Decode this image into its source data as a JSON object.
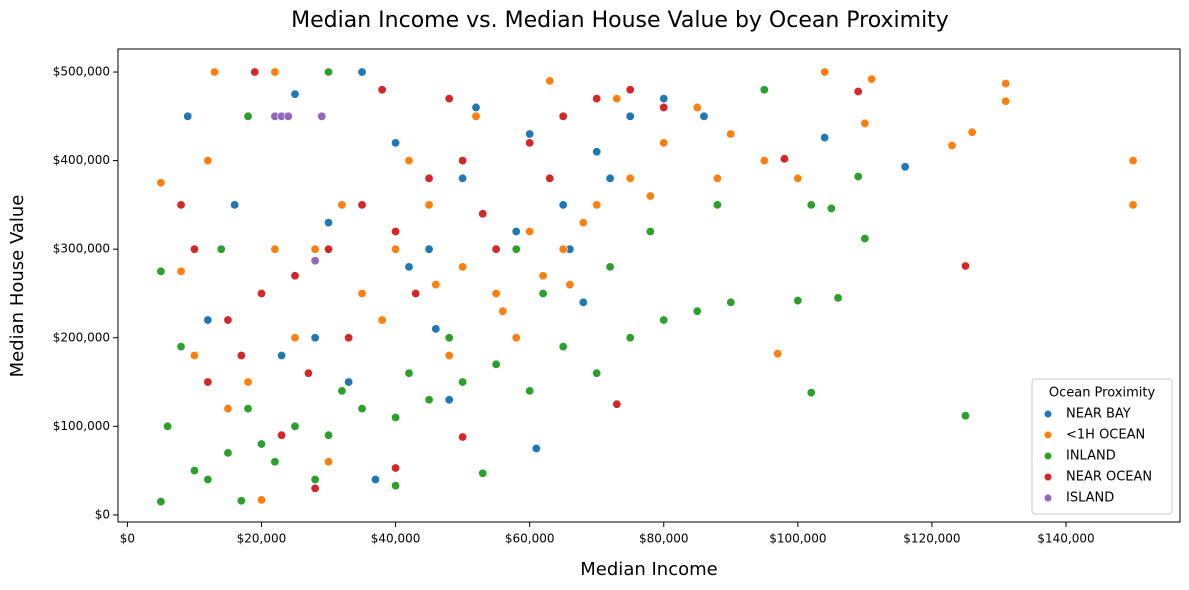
{
  "chart_data": {
    "type": "scatter",
    "title": "Median Income vs. Median House Value by Ocean Proximity",
    "x_label": "Median Income",
    "y_label": "Median House Value",
    "legend_title": "Ocean Proximity",
    "legend_position": "lower right",
    "xlim": [
      -1400,
      157000
    ],
    "ylim": [
      -8000,
      526000
    ],
    "xticks": [
      {
        "value": 0,
        "label": "$0"
      },
      {
        "value": 20000,
        "label": "$20,000"
      },
      {
        "value": 40000,
        "label": "$40,000"
      },
      {
        "value": 60000,
        "label": "$60,000"
      },
      {
        "value": 80000,
        "label": "$80,000"
      },
      {
        "value": 100000,
        "label": "$100,000"
      },
      {
        "value": 120000,
        "label": "$120,000"
      },
      {
        "value": 140000,
        "label": "$140,000"
      }
    ],
    "yticks": [
      {
        "value": 0,
        "label": "$0"
      },
      {
        "value": 100000,
        "label": "$100,000"
      },
      {
        "value": 200000,
        "label": "$200,000"
      },
      {
        "value": 300000,
        "label": "$300,000"
      },
      {
        "value": 400000,
        "label": "$400,000"
      },
      {
        "value": 500000,
        "label": "$500,000"
      }
    ],
    "series": [
      {
        "name": "NEAR BAY",
        "color": "#1f77b4",
        "x": [
          9000,
          116000,
          61000,
          37000,
          16000,
          25000,
          40000,
          50000,
          60000,
          70000,
          80000,
          104000,
          45000,
          55000,
          30000,
          35000,
          65000,
          75000,
          20000,
          28000,
          42000,
          52000,
          66000,
          86000,
          23000,
          33000,
          46000,
          58000,
          72000,
          12000,
          68000,
          48000
        ],
        "values": [
          450000,
          393000,
          75000,
          40000,
          350000,
          475000,
          420000,
          380000,
          430000,
          410000,
          470000,
          426000,
          300000,
          250000,
          330000,
          500000,
          350000,
          450000,
          250000,
          200000,
          280000,
          460000,
          300000,
          450000,
          180000,
          150000,
          210000,
          320000,
          380000,
          220000,
          240000,
          130000
        ]
      },
      {
        "name": "<1H OCEAN",
        "color": "#ff7f0e",
        "x": [
          150000,
          150000,
          131000,
          131000,
          126000,
          123000,
          111000,
          97000,
          110000,
          104000,
          100000,
          13000,
          5000,
          12000,
          8000,
          22000,
          20000,
          30000,
          40000,
          45000,
          50000,
          55000,
          60000,
          65000,
          70000,
          75000,
          80000,
          85000,
          90000,
          95000,
          35000,
          25000,
          18000,
          15000,
          28000,
          38000,
          48000,
          58000,
          62000,
          68000,
          78000,
          88000,
          42000,
          52000,
          63000,
          73000,
          32000,
          22000,
          10000,
          46000,
          56000,
          66000
        ],
        "values": [
          400000,
          350000,
          487000,
          467000,
          432000,
          417000,
          492000,
          182000,
          442000,
          500000,
          380000,
          500000,
          375000,
          400000,
          275000,
          500000,
          17000,
          60000,
          300000,
          350000,
          280000,
          250000,
          320000,
          300000,
          350000,
          380000,
          420000,
          460000,
          430000,
          400000,
          250000,
          200000,
          150000,
          120000,
          300000,
          220000,
          180000,
          200000,
          270000,
          330000,
          360000,
          380000,
          400000,
          450000,
          490000,
          470000,
          350000,
          300000,
          180000,
          260000,
          230000,
          260000
        ]
      },
      {
        "name": "INLAND",
        "color": "#2ca02c",
        "x": [
          125000,
          109000,
          110000,
          105000,
          102000,
          100000,
          106000,
          5000,
          5000,
          17000,
          10000,
          15000,
          20000,
          25000,
          30000,
          35000,
          40000,
          45000,
          50000,
          55000,
          60000,
          65000,
          70000,
          75000,
          80000,
          85000,
          90000,
          53000,
          40000,
          28000,
          22000,
          12000,
          18000,
          32000,
          42000,
          62000,
          72000,
          95000,
          102000,
          30000,
          18000,
          14000,
          8000,
          6000,
          48000,
          58000,
          78000,
          88000
        ],
        "values": [
          112000,
          382000,
          312000,
          346000,
          138000,
          242000,
          245000,
          15000,
          275000,
          16000,
          50000,
          70000,
          80000,
          100000,
          90000,
          120000,
          110000,
          130000,
          150000,
          170000,
          140000,
          190000,
          160000,
          200000,
          220000,
          230000,
          240000,
          47000,
          33000,
          40000,
          60000,
          40000,
          120000,
          140000,
          160000,
          250000,
          280000,
          480000,
          350000,
          500000,
          450000,
          300000,
          190000,
          100000,
          200000,
          300000,
          320000,
          350000
        ]
      },
      {
        "name": "NEAR OCEAN",
        "color": "#d62728",
        "x": [
          125000,
          73000,
          40000,
          28000,
          19000,
          10000,
          15000,
          20000,
          25000,
          30000,
          35000,
          40000,
          45000,
          50000,
          55000,
          60000,
          65000,
          70000,
          75000,
          80000,
          98000,
          109000,
          50000,
          23000,
          33000,
          43000,
          53000,
          63000,
          38000,
          48000,
          8000,
          12000,
          17000,
          27000
        ],
        "values": [
          281000,
          125000,
          53000,
          30000,
          500000,
          300000,
          220000,
          250000,
          270000,
          300000,
          350000,
          320000,
          380000,
          400000,
          300000,
          420000,
          450000,
          470000,
          480000,
          460000,
          402000,
          478000,
          88000,
          90000,
          200000,
          250000,
          340000,
          380000,
          480000,
          470000,
          350000,
          150000,
          180000,
          160000
        ]
      },
      {
        "name": "ISLAND",
        "color": "#9467bd",
        "x": [
          22000,
          23000,
          24000,
          28000,
          29000
        ],
        "values": [
          450000,
          450000,
          450000,
          287000,
          450000
        ]
      }
    ]
  }
}
